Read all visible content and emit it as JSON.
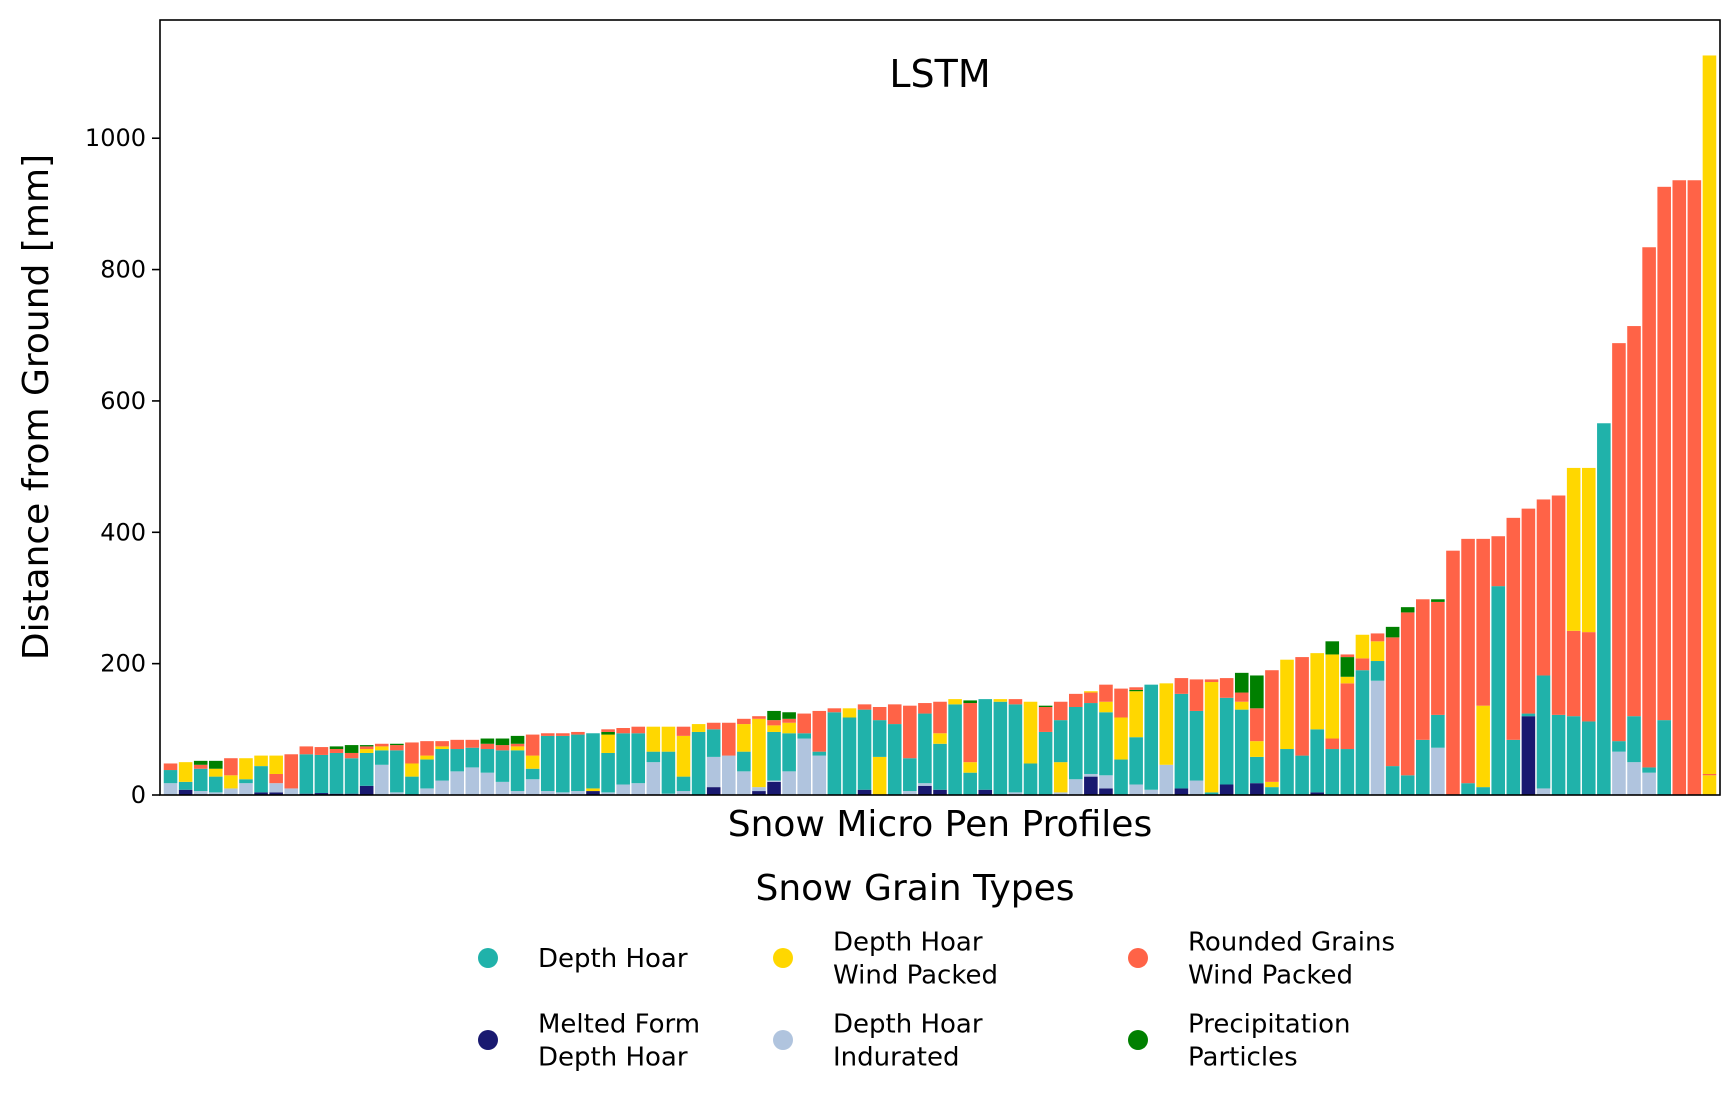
{
  "chart_data": {
    "type": "bar",
    "stacked": true,
    "title": "LSTM",
    "xlabel": "Snow Micro Pen Profiles",
    "ylabel": "Distance from Ground [mm]",
    "ylim": [
      0,
      1180
    ],
    "yticks": [
      0,
      200,
      400,
      600,
      800,
      1000
    ],
    "grid": false,
    "legend": {
      "title": "Snow Grain Types",
      "placement": "bottom-center",
      "entries": [
        {
          "key": "DH",
          "label": "Depth Hoar",
          "color": "#20B2AA"
        },
        {
          "key": "MFDH",
          "label": "Melted Form Depth Hoar",
          "color": "#191970"
        },
        {
          "key": "DHWP",
          "label": "Depth Hoar Wind Packed",
          "color": "#FFD700"
        },
        {
          "key": "DHI",
          "label": "Depth Hoar Indurated",
          "color": "#B0C4DE"
        },
        {
          "key": "RGWP",
          "label": "Rounded Grains Wind Packed",
          "color": "#FF6347"
        },
        {
          "key": "PP",
          "label": "Precipitation Particles",
          "color": "#008000"
        }
      ]
    },
    "profiles": [
      [
        [
          "DHI",
          18
        ],
        [
          "DH",
          20
        ],
        [
          "RGWP",
          10
        ]
      ],
      [
        [
          "MFDH",
          8
        ],
        [
          "DH",
          12
        ],
        [
          "DHWP",
          30
        ]
      ],
      [
        [
          "DHI",
          6
        ],
        [
          "DH",
          34
        ],
        [
          "RGWP",
          6
        ],
        [
          "PP",
          6
        ]
      ],
      [
        [
          "DHI",
          4
        ],
        [
          "DH",
          24
        ],
        [
          "DHWP",
          12
        ],
        [
          "PP",
          12
        ]
      ],
      [
        [
          "DHI",
          10
        ],
        [
          "DHWP",
          20
        ],
        [
          "RGWP",
          26
        ]
      ],
      [
        [
          "DHI",
          18
        ],
        [
          "DH",
          6
        ],
        [
          "DHWP",
          32
        ]
      ],
      [
        [
          "MFDH",
          4
        ],
        [
          "DH",
          40
        ],
        [
          "DHWP",
          16
        ]
      ],
      [
        [
          "MFDH",
          4
        ],
        [
          "DHI",
          14
        ],
        [
          "RGWP",
          14
        ],
        [
          "DHWP",
          28
        ]
      ],
      [
        [
          "DHI",
          10
        ],
        [
          "RGWP",
          52
        ]
      ],
      [
        [
          "MFDH",
          2
        ],
        [
          "DH",
          60
        ],
        [
          "RGWP",
          12
        ]
      ],
      [
        [
          "MFDH",
          3
        ],
        [
          "DH",
          58
        ],
        [
          "RGWP",
          12
        ]
      ],
      [
        [
          "MFDH",
          2
        ],
        [
          "DH",
          62
        ],
        [
          "RGWP",
          6
        ],
        [
          "PP",
          4
        ]
      ],
      [
        [
          "MFDH",
          2
        ],
        [
          "DH",
          54
        ],
        [
          "RGWP",
          8
        ],
        [
          "PP",
          12
        ]
      ],
      [
        [
          "MFDH",
          14
        ],
        [
          "DH",
          50
        ],
        [
          "DHWP",
          6
        ],
        [
          "RGWP",
          4
        ],
        [
          "PP",
          2
        ]
      ],
      [
        [
          "DHI",
          46
        ],
        [
          "DH",
          22
        ],
        [
          "DHWP",
          6
        ],
        [
          "RGWP",
          4
        ]
      ],
      [
        [
          "DHI",
          4
        ],
        [
          "DH",
          64
        ],
        [
          "RGWP",
          8
        ],
        [
          "PP",
          2
        ]
      ],
      [
        [
          "DH",
          28
        ],
        [
          "DHWP",
          20
        ],
        [
          "RGWP",
          32
        ]
      ],
      [
        [
          "DHI",
          10
        ],
        [
          "DH",
          44
        ],
        [
          "DHWP",
          6
        ],
        [
          "RGWP",
          22
        ]
      ],
      [
        [
          "DHI",
          22
        ],
        [
          "DH",
          48
        ],
        [
          "DHWP",
          4
        ],
        [
          "RGWP",
          8
        ]
      ],
      [
        [
          "DHI",
          36
        ],
        [
          "DH",
          34
        ],
        [
          "RGWP",
          14
        ]
      ],
      [
        [
          "DHI",
          42
        ],
        [
          "DH",
          30
        ],
        [
          "RGWP",
          12
        ]
      ],
      [
        [
          "DHI",
          34
        ],
        [
          "DH",
          36
        ],
        [
          "RGWP",
          8
        ],
        [
          "PP",
          8
        ]
      ],
      [
        [
          "DHI",
          20
        ],
        [
          "DH",
          48
        ],
        [
          "RGWP",
          8
        ],
        [
          "PP",
          10
        ]
      ],
      [
        [
          "DHI",
          6
        ],
        [
          "DH",
          62
        ],
        [
          "DHWP",
          6
        ],
        [
          "RGWP",
          4
        ],
        [
          "PP",
          12
        ]
      ],
      [
        [
          "DHI",
          24
        ],
        [
          "DH",
          16
        ],
        [
          "DHWP",
          20
        ],
        [
          "RGWP",
          32
        ]
      ],
      [
        [
          "DHI",
          6
        ],
        [
          "DH",
          84
        ],
        [
          "RGWP",
          4
        ]
      ],
      [
        [
          "DHI",
          4
        ],
        [
          "DH",
          86
        ],
        [
          "RGWP",
          4
        ]
      ],
      [
        [
          "DHI",
          6
        ],
        [
          "DH",
          86
        ],
        [
          "RGWP",
          4
        ]
      ],
      [
        [
          "MFDH",
          6
        ],
        [
          "DHWP",
          4
        ],
        [
          "DH",
          84
        ]
      ],
      [
        [
          "DHI",
          4
        ],
        [
          "DH",
          60
        ],
        [
          "DHWP",
          28
        ],
        [
          "PP",
          4
        ],
        [
          "RGWP",
          4
        ]
      ],
      [
        [
          "DHI",
          16
        ],
        [
          "DH",
          78
        ],
        [
          "RGWP",
          8
        ]
      ],
      [
        [
          "DHI",
          18
        ],
        [
          "DH",
          76
        ],
        [
          "RGWP",
          10
        ]
      ],
      [
        [
          "DHI",
          50
        ],
        [
          "DH",
          16
        ],
        [
          "DHWP",
          38
        ]
      ],
      [
        [
          "DHI",
          2
        ],
        [
          "DH",
          64
        ],
        [
          "DHWP",
          38
        ]
      ],
      [
        [
          "DHI",
          6
        ],
        [
          "DH",
          22
        ],
        [
          "DHWP",
          62
        ],
        [
          "RGWP",
          14
        ]
      ],
      [
        [
          "DH",
          96
        ],
        [
          "DHWP",
          12
        ]
      ],
      [
        [
          "MFDH",
          12
        ],
        [
          "DHI",
          46
        ],
        [
          "DH",
          42
        ],
        [
          "RGWP",
          10
        ]
      ],
      [
        [
          "DHI",
          60
        ],
        [
          "RGWP",
          50
        ]
      ],
      [
        [
          "DHI",
          36
        ],
        [
          "DH",
          30
        ],
        [
          "DHWP",
          42
        ],
        [
          "RGWP",
          8
        ]
      ],
      [
        [
          "MFDH",
          6
        ],
        [
          "DHI",
          6
        ],
        [
          "DHWP",
          104
        ],
        [
          "RGWP",
          4
        ]
      ],
      [
        [
          "MFDH",
          20
        ],
        [
          "DHI",
          2
        ],
        [
          "DH",
          74
        ],
        [
          "DHWP",
          10
        ],
        [
          "RGWP",
          8
        ],
        [
          "PP",
          14
        ]
      ],
      [
        [
          "DHI",
          36
        ],
        [
          "DH",
          58
        ],
        [
          "DHWP",
          16
        ],
        [
          "RGWP",
          6
        ],
        [
          "PP",
          10
        ]
      ],
      [
        [
          "DHI",
          86
        ],
        [
          "DH",
          8
        ],
        [
          "RGWP",
          30
        ]
      ],
      [
        [
          "DHI",
          60
        ],
        [
          "DH",
          6
        ],
        [
          "RGWP",
          62
        ]
      ],
      [
        [
          "DH",
          126
        ],
        [
          "RGWP",
          6
        ]
      ],
      [
        [
          "DH",
          118
        ],
        [
          "DHWP",
          14
        ]
      ],
      [
        [
          "MFDH",
          8
        ],
        [
          "DH",
          122
        ],
        [
          "RGWP",
          8
        ]
      ],
      [
        [
          "DHWP",
          58
        ],
        [
          "DH",
          56
        ],
        [
          "RGWP",
          20
        ]
      ],
      [
        [
          "DH",
          108
        ],
        [
          "RGWP",
          30
        ]
      ],
      [
        [
          "DHI",
          6
        ],
        [
          "DH",
          50
        ],
        [
          "RGWP",
          80
        ]
      ],
      [
        [
          "MFDH",
          14
        ],
        [
          "DHI",
          4
        ],
        [
          "DH",
          106
        ],
        [
          "RGWP",
          16
        ]
      ],
      [
        [
          "MFDH",
          8
        ],
        [
          "DH",
          70
        ],
        [
          "DHWP",
          16
        ],
        [
          "RGWP",
          48
        ]
      ],
      [
        [
          "DH",
          138
        ],
        [
          "DHWP",
          8
        ]
      ],
      [
        [
          "DH",
          34
        ],
        [
          "DHWP",
          16
        ],
        [
          "RGWP",
          90
        ],
        [
          "PP",
          4
        ]
      ],
      [
        [
          "MFDH",
          8
        ],
        [
          "DH",
          138
        ]
      ],
      [
        [
          "DH",
          142
        ],
        [
          "DHWP",
          4
        ]
      ],
      [
        [
          "DHI",
          4
        ],
        [
          "DH",
          134
        ],
        [
          "RGWP",
          8
        ]
      ],
      [
        [
          "DH",
          48
        ],
        [
          "DHWP",
          94
        ]
      ],
      [
        [
          "DH",
          96
        ],
        [
          "RGWP",
          38
        ],
        [
          "PP",
          2
        ]
      ],
      [
        [
          "DHI",
          4
        ],
        [
          "DHWP",
          46
        ],
        [
          "DH",
          64
        ],
        [
          "RGWP",
          28
        ]
      ],
      [
        [
          "DHI",
          24
        ],
        [
          "DH",
          110
        ],
        [
          "RGWP",
          20
        ]
      ],
      [
        [
          "MFDH",
          28
        ],
        [
          "DHI",
          4
        ],
        [
          "DH",
          108
        ],
        [
          "RGWP",
          16
        ],
        [
          "DHWP",
          2
        ]
      ],
      [
        [
          "MFDH",
          10
        ],
        [
          "DHI",
          20
        ],
        [
          "DH",
          96
        ],
        [
          "DHWP",
          16
        ],
        [
          "RGWP",
          26
        ]
      ],
      [
        [
          "DH",
          54
        ],
        [
          "DHWP",
          64
        ],
        [
          "RGWP",
          44
        ]
      ],
      [
        [
          "DHI",
          16
        ],
        [
          "DH",
          72
        ],
        [
          "DHWP",
          70
        ],
        [
          "PP",
          2
        ],
        [
          "RGWP",
          4
        ]
      ],
      [
        [
          "DHI",
          8
        ],
        [
          "DH",
          160
        ]
      ],
      [
        [
          "DHI",
          46
        ],
        [
          "DHWP",
          124
        ]
      ],
      [
        [
          "MFDH",
          10
        ],
        [
          "DH",
          144
        ],
        [
          "RGWP",
          24
        ]
      ],
      [
        [
          "DHI",
          22
        ],
        [
          "DH",
          106
        ],
        [
          "RGWP",
          48
        ]
      ],
      [
        [
          "DH",
          4
        ],
        [
          "DHWP",
          168
        ],
        [
          "RGWP",
          4
        ]
      ],
      [
        [
          "MFDH",
          16
        ],
        [
          "DH",
          132
        ],
        [
          "RGWP",
          30
        ]
      ],
      [
        [
          "DH",
          130
        ],
        [
          "DHWP",
          12
        ],
        [
          "RGWP",
          14
        ],
        [
          "PP",
          30
        ]
      ],
      [
        [
          "MFDH",
          18
        ],
        [
          "DH",
          40
        ],
        [
          "DHWP",
          24
        ],
        [
          "RGWP",
          50
        ],
        [
          "PP",
          50
        ]
      ],
      [
        [
          "DH",
          12
        ],
        [
          "DHWP",
          8
        ],
        [
          "RGWP",
          170
        ]
      ],
      [
        [
          "DH",
          70
        ],
        [
          "DHWP",
          136
        ]
      ],
      [
        [
          "DH",
          60
        ],
        [
          "RGWP",
          150
        ]
      ],
      [
        [
          "MFDH",
          4
        ],
        [
          "DH",
          96
        ],
        [
          "DHWP",
          116
        ]
      ],
      [
        [
          "DH",
          70
        ],
        [
          "RGWP",
          16
        ],
        [
          "DHWP",
          128
        ],
        [
          "PP",
          20
        ]
      ],
      [
        [
          "DH",
          70
        ],
        [
          "RGWP",
          100
        ],
        [
          "DHWP",
          10
        ],
        [
          "PP",
          30
        ],
        [
          "RGWP",
          4
        ]
      ],
      [
        [
          "DH",
          190
        ],
        [
          "RGWP",
          18
        ],
        [
          "DHWP",
          36
        ]
      ],
      [
        [
          "DHI",
          174
        ],
        [
          "DH",
          30
        ],
        [
          "DHWP",
          30
        ],
        [
          "RGWP",
          12
        ]
      ],
      [
        [
          "DH",
          44
        ],
        [
          "RGWP",
          196
        ],
        [
          "PP",
          16
        ]
      ],
      [
        [
          "DH",
          30
        ],
        [
          "RGWP",
          248
        ],
        [
          "PP",
          8
        ]
      ],
      [
        [
          "DH",
          84
        ],
        [
          "RGWP",
          214
        ]
      ],
      [
        [
          "DHI",
          72
        ],
        [
          "DH",
          50
        ],
        [
          "RGWP",
          172
        ],
        [
          "PP",
          4
        ]
      ],
      [
        [
          "RGWP",
          372
        ]
      ],
      [
        [
          "DH",
          18
        ],
        [
          "RGWP",
          372
        ]
      ],
      [
        [
          "DH",
          12
        ],
        [
          "DHWP",
          124
        ],
        [
          "RGWP",
          254
        ]
      ],
      [
        [
          "DH",
          318
        ],
        [
          "RGWP",
          76
        ]
      ],
      [
        [
          "DH",
          84
        ],
        [
          "RGWP",
          338
        ]
      ],
      [
        [
          "MFDH",
          120
        ],
        [
          "DH",
          4
        ],
        [
          "RGWP",
          312
        ]
      ],
      [
        [
          "DHI",
          10
        ],
        [
          "DH",
          172
        ],
        [
          "RGWP",
          268
        ]
      ],
      [
        [
          "DH",
          122
        ],
        [
          "RGWP",
          334
        ]
      ],
      [
        [
          "DH",
          120
        ],
        [
          "RGWP",
          130
        ],
        [
          "DHWP",
          248
        ]
      ],
      [
        [
          "DH",
          112
        ],
        [
          "RGWP",
          136
        ],
        [
          "DHWP",
          250
        ]
      ],
      [
        [
          "DH",
          566
        ]
      ],
      [
        [
          "DHI",
          66
        ],
        [
          "DH",
          16
        ],
        [
          "RGWP",
          606
        ]
      ],
      [
        [
          "DHI",
          50
        ],
        [
          "DH",
          70
        ],
        [
          "RGWP",
          594
        ]
      ],
      [
        [
          "DHI",
          34
        ],
        [
          "DH",
          8
        ],
        [
          "RGWP",
          792
        ]
      ],
      [
        [
          "DH",
          114
        ],
        [
          "RGWP",
          812
        ]
      ],
      [
        [
          "RGWP",
          936
        ]
      ],
      [
        [
          "RGWP",
          936
        ]
      ],
      [
        [
          "DHWP",
          30
        ],
        [
          "RGWP",
          2
        ],
        [
          "DHWP",
          1094
        ]
      ]
    ]
  }
}
